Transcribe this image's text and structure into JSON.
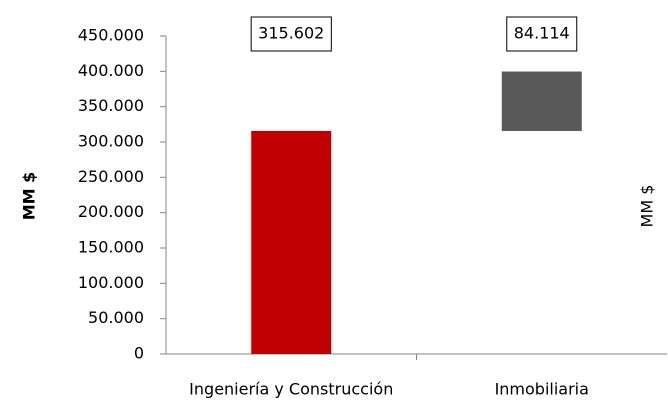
{
  "chart_data": {
    "type": "waterfall",
    "y_label": "MM $",
    "y2_label": "MM $",
    "categories": [
      "Ingeniería y Construcción",
      "Inmobiliaria"
    ],
    "values": [
      315602,
      84114
    ],
    "value_labels": [
      "315.602",
      "84.114"
    ],
    "colors": [
      "#c00000",
      "#595959"
    ],
    "ylim": [
      0,
      450000
    ],
    "yticks": [
      {
        "value": 0,
        "label": "0"
      },
      {
        "value": 50000,
        "label": "50.000"
      },
      {
        "value": 100000,
        "label": "100.000"
      },
      {
        "value": 150000,
        "label": "150.000"
      },
      {
        "value": 200000,
        "label": "200.000"
      },
      {
        "value": 250000,
        "label": "250.000"
      },
      {
        "value": 300000,
        "label": "300.000"
      },
      {
        "value": 350000,
        "label": "350.000"
      },
      {
        "value": 400000,
        "label": "400.000"
      },
      {
        "value": 450000,
        "label": "450.000"
      }
    ],
    "grid": false
  }
}
